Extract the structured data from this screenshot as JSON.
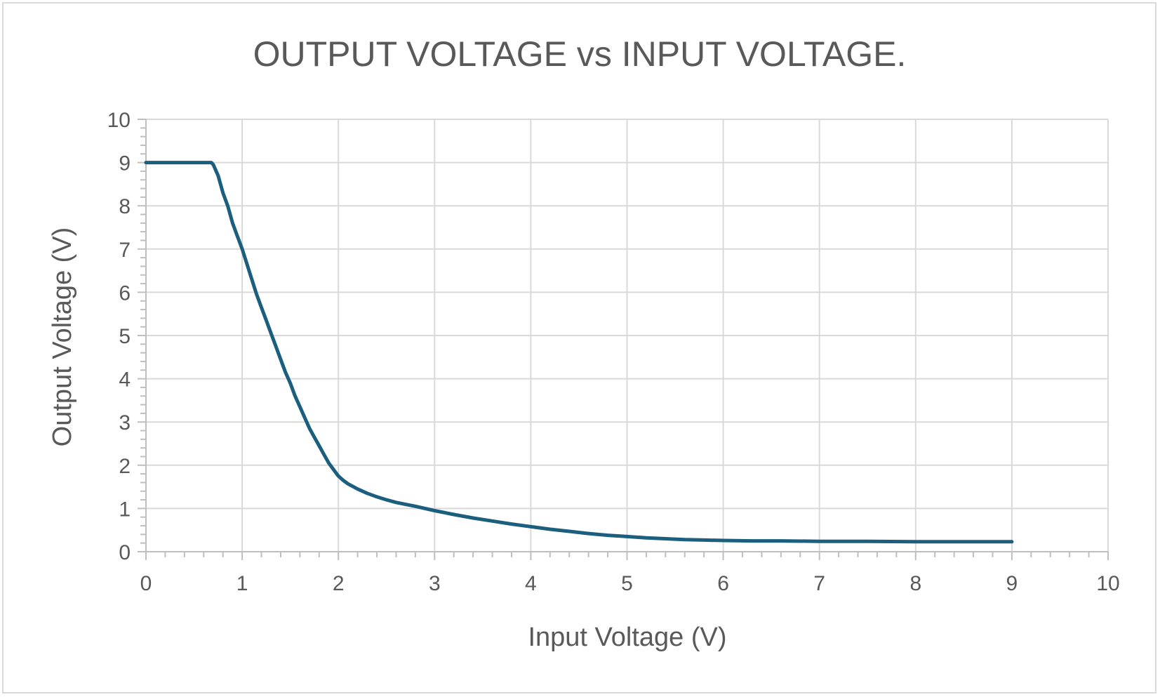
{
  "chart_data": {
    "type": "scatter",
    "title": "OUTPUT VOLTAGE vs INPUT VOLTAGE.",
    "xlabel": "Input Voltage (V)",
    "ylabel": "Output Voltage (V)",
    "xlim": [
      0,
      10
    ],
    "ylim": [
      0,
      10
    ],
    "x_ticks": [
      0,
      1,
      2,
      3,
      4,
      5,
      6,
      7,
      8,
      9,
      10
    ],
    "y_ticks": [
      0,
      1,
      2,
      3,
      4,
      5,
      6,
      7,
      8,
      9,
      10
    ],
    "grid": true,
    "legend": "none",
    "series": [
      {
        "color": "#1b5e7e",
        "x": [
          0,
          0.2,
          0.4,
          0.6,
          0.68,
          0.7,
          0.75,
          0.8,
          0.85,
          0.9,
          0.95,
          1.0,
          1.05,
          1.1,
          1.15,
          1.2,
          1.25,
          1.3,
          1.35,
          1.4,
          1.45,
          1.5,
          1.55,
          1.6,
          1.65,
          1.7,
          1.75,
          1.8,
          1.85,
          1.9,
          1.95,
          2.0,
          2.05,
          2.1,
          2.2,
          2.3,
          2.4,
          2.5,
          2.6,
          2.8,
          3.0,
          3.2,
          3.4,
          3.6,
          3.8,
          4.0,
          4.2,
          4.4,
          4.6,
          4.8,
          5.0,
          5.2,
          5.4,
          5.6,
          5.8,
          6.0,
          6.3,
          6.6,
          7.0,
          7.5,
          8.0,
          8.5,
          9.0
        ],
        "y": [
          9.0,
          9.0,
          9.0,
          9.0,
          9.0,
          8.95,
          8.7,
          8.3,
          8.0,
          7.6,
          7.3,
          7.0,
          6.65,
          6.3,
          5.95,
          5.65,
          5.35,
          5.05,
          4.75,
          4.45,
          4.15,
          3.9,
          3.6,
          3.35,
          3.1,
          2.85,
          2.65,
          2.45,
          2.25,
          2.05,
          1.9,
          1.75,
          1.65,
          1.57,
          1.45,
          1.35,
          1.27,
          1.2,
          1.14,
          1.05,
          0.95,
          0.86,
          0.78,
          0.71,
          0.64,
          0.58,
          0.52,
          0.47,
          0.42,
          0.38,
          0.35,
          0.32,
          0.3,
          0.28,
          0.27,
          0.26,
          0.25,
          0.25,
          0.24,
          0.24,
          0.23,
          0.23,
          0.23
        ]
      }
    ]
  }
}
